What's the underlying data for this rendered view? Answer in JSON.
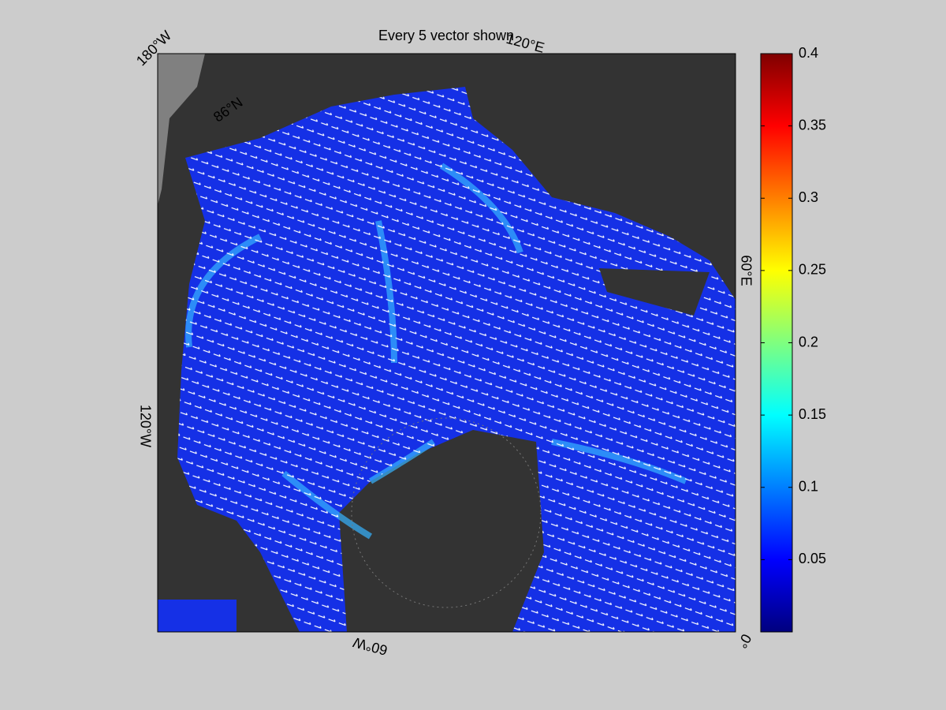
{
  "title": "Every 5 vector shown",
  "map": {
    "labels": [
      "180°W",
      "120°E",
      "60°E",
      "0°",
      "60°W",
      "120°W",
      "86°N"
    ]
  },
  "colorbar": {
    "lim": [
      0,
      0.4
    ],
    "ticks": [
      0.05,
      0.1,
      0.15,
      0.2,
      0.25,
      0.3,
      0.35,
      0.4
    ],
    "colormap": "jet"
  }
}
